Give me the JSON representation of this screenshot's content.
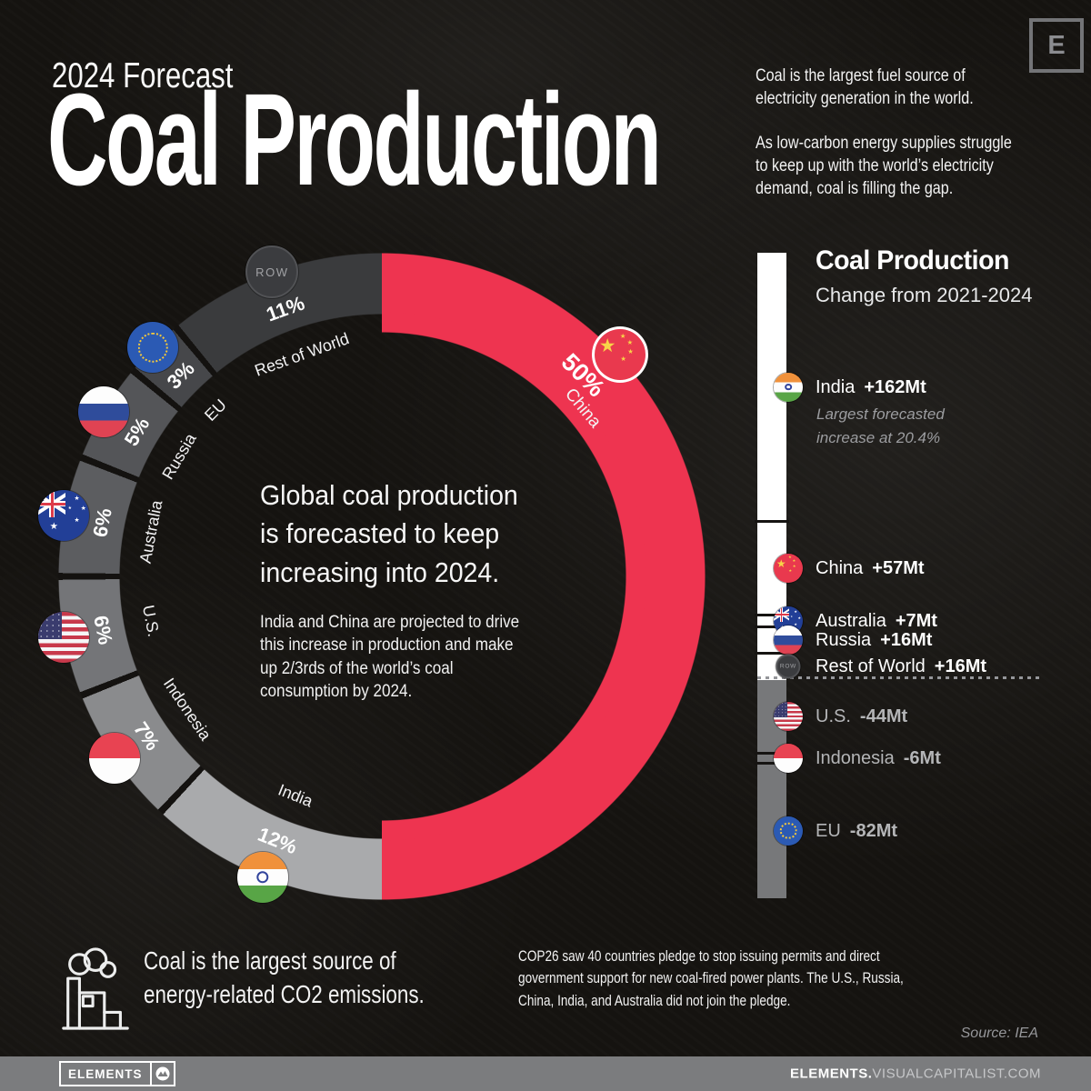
{
  "page": {
    "eyebrow": "2024 Forecast",
    "title": "Coal Production",
    "corner_letter": "E"
  },
  "intro": {
    "p1": "Coal is the largest fuel source of\nelectricity generation in the world.",
    "p2": "As low-carbon energy supplies struggle\nto keep up with the world’s electricity\ndemand, coal is filling the gap."
  },
  "center": {
    "headline": "Global coal production\nis forecasted to keep\nincreasing into 2024.",
    "paragraph": "India and China are projected to drive\nthis increase in production and make\nup 2/3rds of the world’s coal\nconsumption by 2024."
  },
  "footnote": {
    "co2": "Coal is the largest source of\nenergy-related CO2 emissions.",
    "cop26": "COP26 saw 40 countries pledge to stop issuing permits and direct\ngovernment support for new coal-fired power plants. The U.S., Russia,\nChina, India, and Australia did not join the pledge.",
    "source": "Source: IEA"
  },
  "footer": {
    "brand": "ELEMENTS",
    "site_bold": "ELEMENTS.",
    "site_rest": "VISUALCAPITALIST.COM"
  },
  "chart_data": [
    {
      "type": "pie",
      "variant": "donut",
      "unit": "% of world coal production",
      "segments": [
        {
          "label": "China",
          "value": 50,
          "color": "#ee3450",
          "flag": "cn",
          "big_label": true,
          "hints": {
            "flag_angle": 47,
            "flag_r": 358,
            "pct_angle": 45,
            "pct_r": 312,
            "name_angle": 50,
            "name_r": 288
          }
        },
        {
          "label": "India",
          "value": 12,
          "color": "#a9aaac",
          "flag": "in"
        },
        {
          "label": "Indonesia",
          "value": 7,
          "color": "#8a8b8d",
          "flag": "id"
        },
        {
          "label": "U.S.",
          "value": 6,
          "color": "#747578",
          "flag": "us"
        },
        {
          "label": "Australia",
          "value": 6,
          "color": "#5c5d60",
          "flag": "au"
        },
        {
          "label": "Russia",
          "value": 5,
          "color": "#545558",
          "flag": "ru"
        },
        {
          "label": "EU",
          "value": 3,
          "color": "#46474a",
          "flag": "eu"
        },
        {
          "label": "Rest of World",
          "value": 11,
          "color": "#3a3b3d",
          "flag": "row",
          "short": "ROW"
        }
      ],
      "layout": {
        "start_angle_deg": 0,
        "clockwise": true,
        "outer_radius_px": 356,
        "inner_radius_px": 291
      }
    },
    {
      "type": "bar",
      "variant": "diverging-stacked-column",
      "title": "Coal Production",
      "subtitle": "Change from 2021-2024",
      "unit": "Mt",
      "entries": [
        {
          "label": "India",
          "value": 162,
          "display": "+162Mt",
          "flag": "in",
          "note": "Largest forecasted\nincrease at 20.4%"
        },
        {
          "label": "China",
          "value": 57,
          "display": "+57Mt",
          "flag": "cn"
        },
        {
          "label": "Australia",
          "value": 7,
          "display": "+7Mt",
          "flag": "au"
        },
        {
          "label": "Russia",
          "value": 16,
          "display": "+16Mt",
          "flag": "ru"
        },
        {
          "label": "Rest of World",
          "value": 16,
          "display": "+16Mt",
          "flag": "row",
          "short": "ROW"
        },
        {
          "label": "U.S.",
          "value": -44,
          "display": "-44Mt",
          "flag": "us"
        },
        {
          "label": "Indonesia",
          "value": -6,
          "display": "-6Mt",
          "flag": "id"
        },
        {
          "label": "EU",
          "value": -82,
          "display": "-82Mt",
          "flag": "eu"
        }
      ],
      "colors": {
        "positive_bar": "#ffffff",
        "negative_bar": "#77787a"
      }
    }
  ]
}
